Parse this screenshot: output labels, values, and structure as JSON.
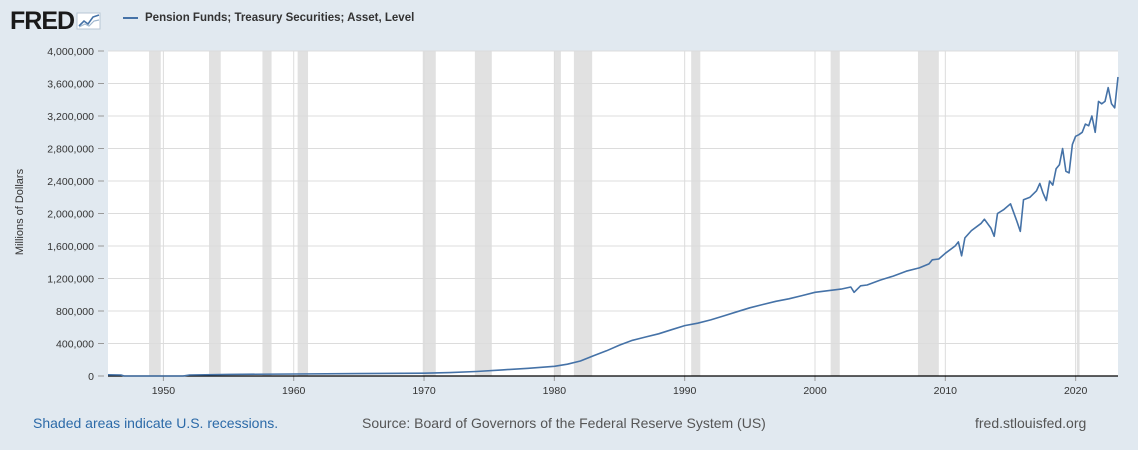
{
  "logo": {
    "text": "FRED"
  },
  "legend": {
    "label": "Pension Funds; Treasury Securities; Asset, Level",
    "color": "#4572a7"
  },
  "footer": {
    "recession_note": "Shaded areas indicate U.S. recessions.",
    "source": "Source: Board of Governors of the Federal Reserve System (US)",
    "url": "fred.stlouisfed.org"
  },
  "colors": {
    "background": "#e1e9f0",
    "plot": "#ffffff",
    "line": "#4572a7",
    "recession": "#e1e1e1",
    "grid": "#dcdcdc"
  },
  "chart_data": {
    "type": "line",
    "title": "",
    "xlabel": "",
    "ylabel": "Millions of Dollars",
    "xlim": [
      1945.75,
      2023.25
    ],
    "ylim": [
      0,
      4000000
    ],
    "grid": true,
    "legend_position": "top-left",
    "x_ticks": [
      1950,
      1960,
      1970,
      1980,
      1990,
      2000,
      2010,
      2020
    ],
    "y_ticks": [
      0,
      400000,
      800000,
      1200000,
      1600000,
      2000000,
      2400000,
      2800000,
      3200000,
      3600000,
      4000000
    ],
    "y_tick_labels": [
      "0",
      "400,000",
      "800,000",
      "1,200,000",
      "1,600,000",
      "2,000,000",
      "2,400,000",
      "2,800,000",
      "3,200,000",
      "3,600,000",
      "4,000,000"
    ],
    "recessions": [
      [
        1948.9,
        1949.8
      ],
      [
        1953.5,
        1954.4
      ],
      [
        1957.6,
        1958.3
      ],
      [
        1960.3,
        1961.1
      ],
      [
        1969.9,
        1970.9
      ],
      [
        1973.9,
        1975.2
      ],
      [
        1980.0,
        1980.5
      ],
      [
        1981.5,
        1982.9
      ],
      [
        1990.5,
        1991.2
      ],
      [
        2001.2,
        2001.9
      ],
      [
        2007.9,
        2009.5
      ],
      [
        2020.1,
        2020.3
      ]
    ],
    "series": [
      {
        "color": "#4572a7",
        "x": [
          1945.75,
          1946.75,
          1947.0,
          1951.5,
          1952.0,
          1955,
          1960,
          1965,
          1970,
          1972,
          1974,
          1976,
          1978,
          1980,
          1981,
          1982,
          1983,
          1984,
          1985,
          1986,
          1987,
          1988,
          1989,
          1990,
          1991,
          1992,
          1993,
          1994,
          1995,
          1996,
          1997,
          1998,
          1999,
          2000,
          2001,
          2002,
          2002.75,
          2003,
          2003.5,
          2004,
          2005,
          2006,
          2007,
          2008,
          2008.75,
          2009,
          2009.5,
          2010,
          2010.75,
          2011,
          2011.25,
          2011.5,
          2012,
          2012.75,
          2013,
          2013.5,
          2013.75,
          2014,
          2014.5,
          2015,
          2015.5,
          2015.75,
          2016,
          2016.5,
          2017,
          2017.25,
          2017.5,
          2017.75,
          2018,
          2018.25,
          2018.5,
          2018.75,
          2019,
          2019.25,
          2019.5,
          2019.75,
          2020,
          2020.25,
          2020.5,
          2020.75,
          2021,
          2021.25,
          2021.5,
          2021.75,
          2022,
          2022.25,
          2022.5,
          2022.75,
          2023,
          2023.25
        ],
        "y": [
          15000,
          12000,
          0,
          0,
          12000,
          20000,
          25000,
          30000,
          35000,
          42000,
          55000,
          75000,
          95000,
          120000,
          145000,
          185000,
          250000,
          310000,
          380000,
          440000,
          480000,
          520000,
          570000,
          620000,
          650000,
          690000,
          740000,
          790000,
          840000,
          880000,
          920000,
          950000,
          990000,
          1030000,
          1050000,
          1070000,
          1095000,
          1030000,
          1110000,
          1120000,
          1180000,
          1230000,
          1290000,
          1330000,
          1380000,
          1430000,
          1440000,
          1510000,
          1600000,
          1650000,
          1480000,
          1700000,
          1790000,
          1880000,
          1930000,
          1820000,
          1720000,
          2000000,
          2050000,
          2120000,
          1900000,
          1780000,
          2170000,
          2200000,
          2280000,
          2370000,
          2250000,
          2160000,
          2400000,
          2350000,
          2550000,
          2600000,
          2800000,
          2520000,
          2500000,
          2850000,
          2950000,
          2970000,
          3000000,
          3100000,
          3080000,
          3200000,
          3000000,
          3380000,
          3350000,
          3380000,
          3550000,
          3350000,
          3300000,
          3680000
        ]
      }
    ]
  }
}
